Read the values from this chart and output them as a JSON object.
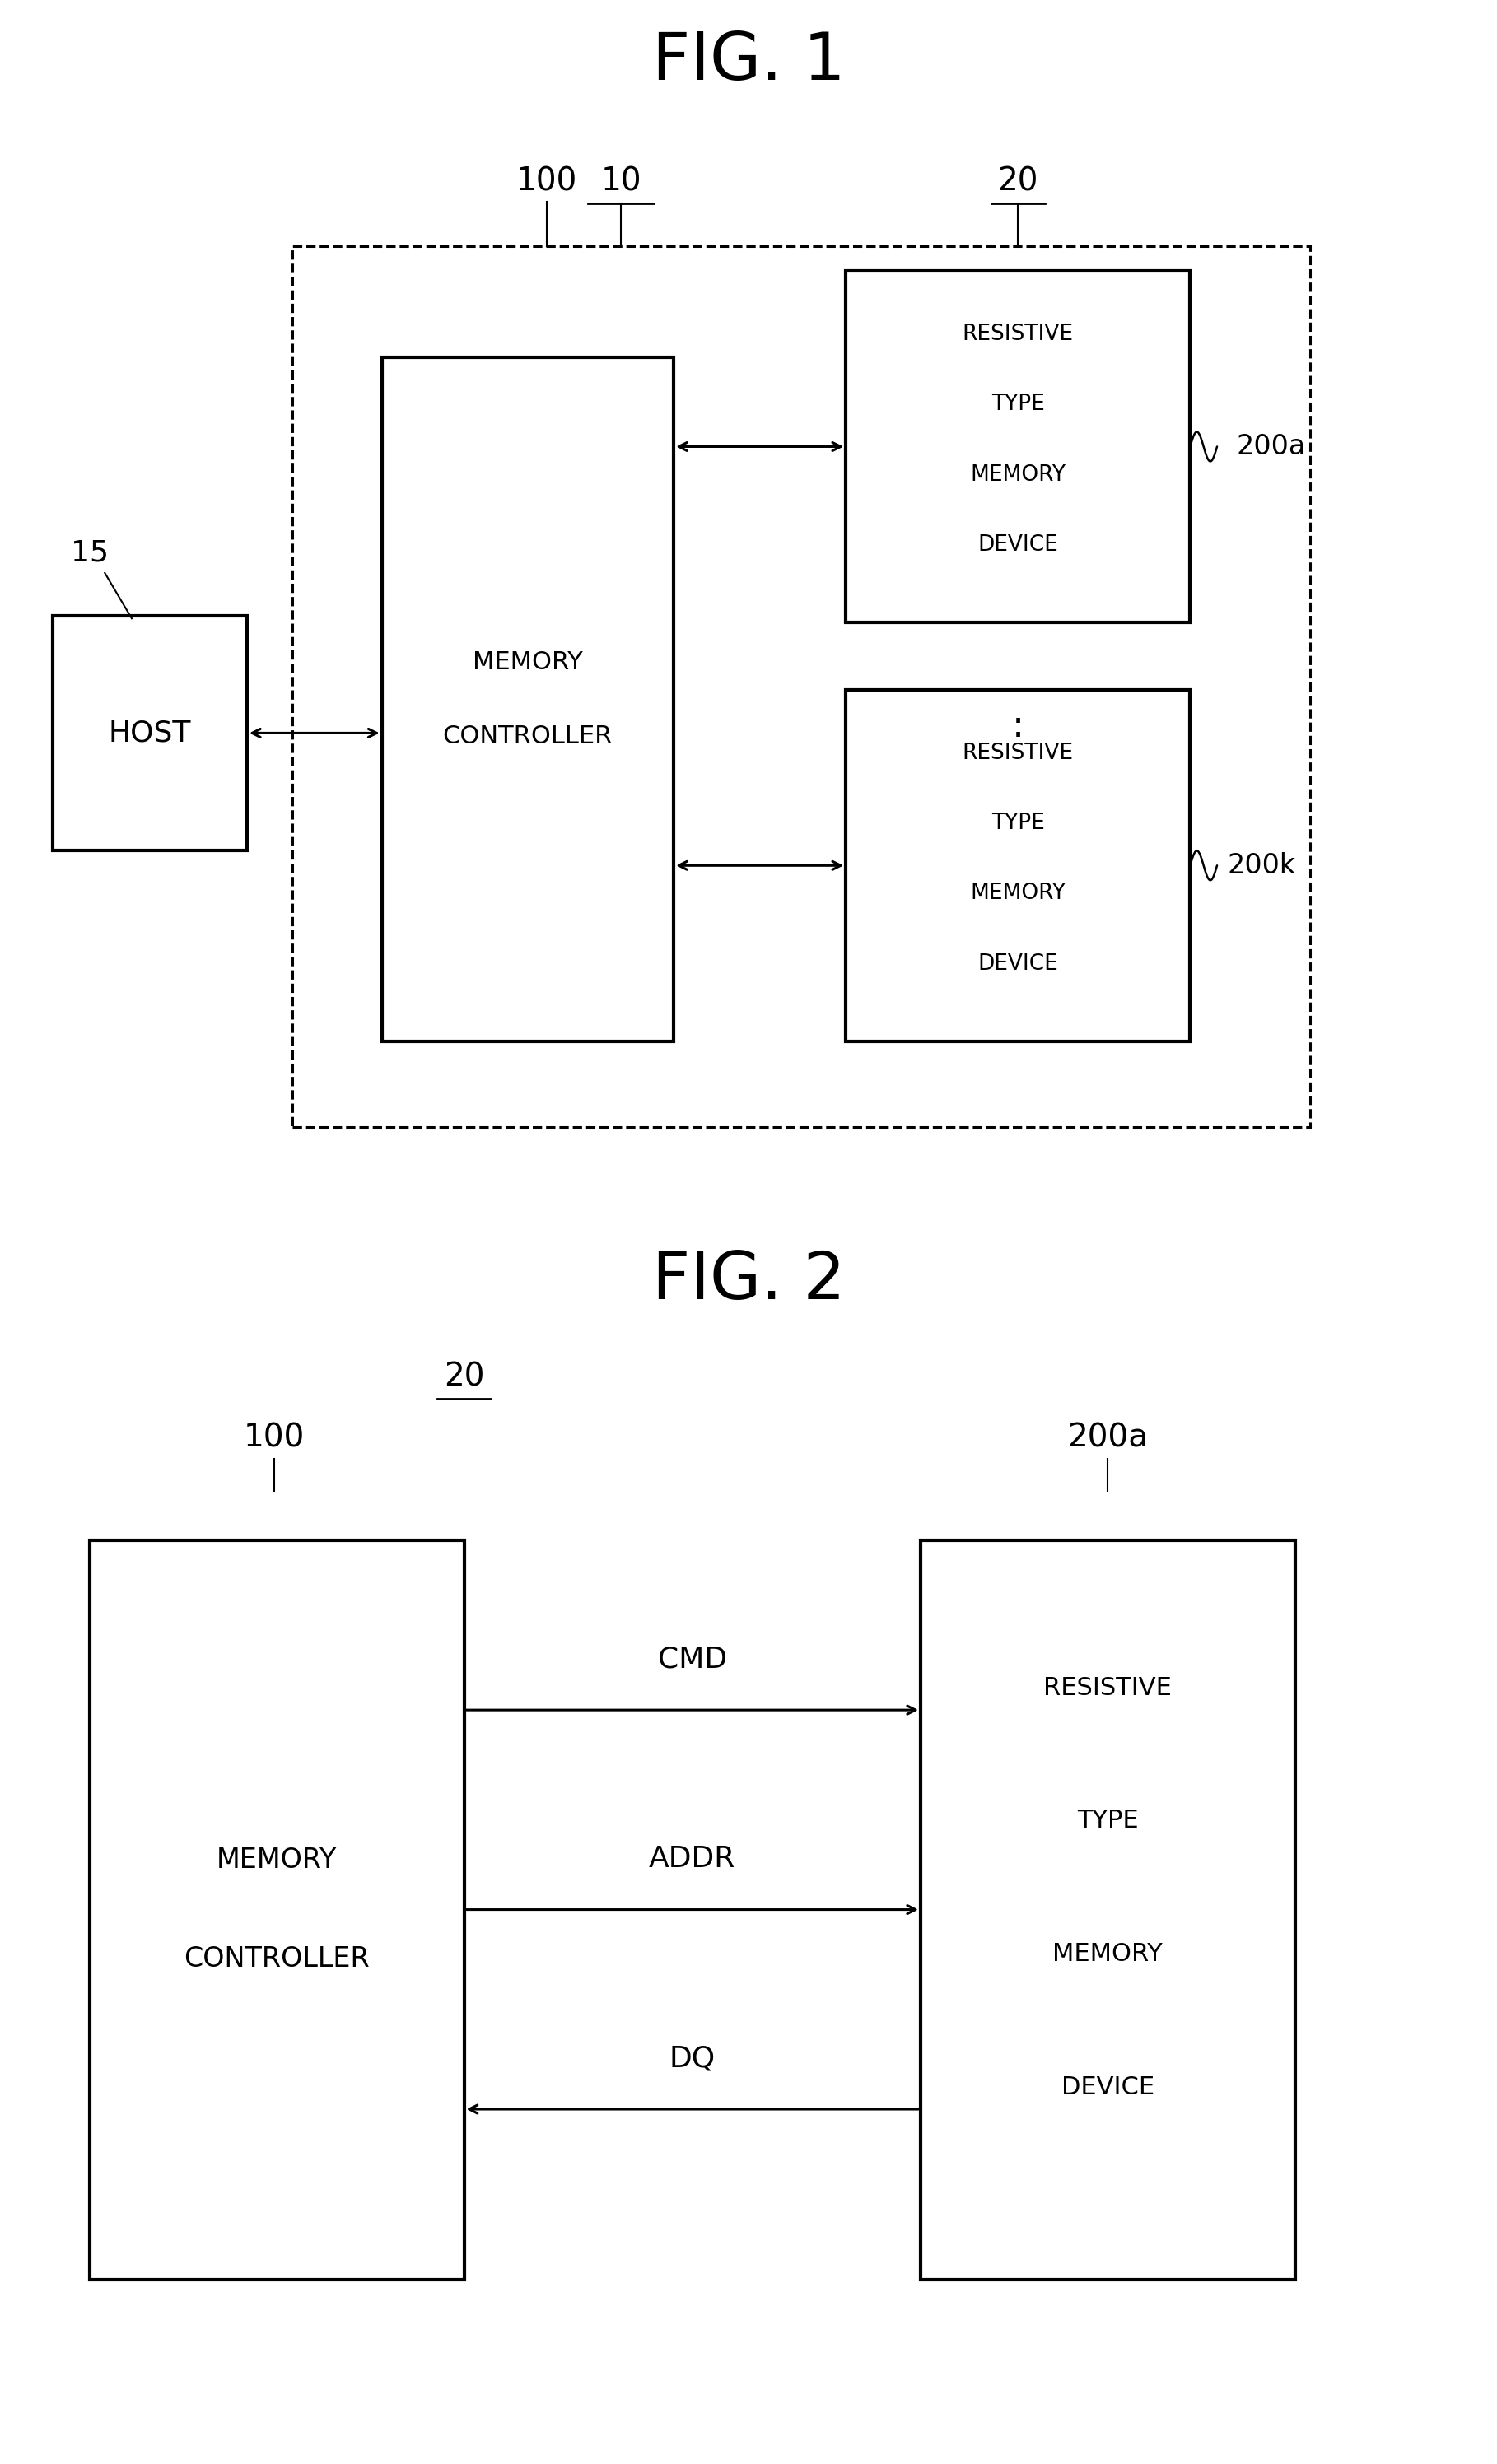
{
  "fig1_title": "FIG. 1",
  "fig2_title": "FIG. 2",
  "bg_color": "#ffffff",
  "line_color": "#000000",
  "fig1": {
    "label_10": "10",
    "label_100": "100",
    "label_20": "20",
    "label_15": "15",
    "label_200a": "200a",
    "label_200k": "200k",
    "host_text": "HOST",
    "mc_text_line1": "MEMORY",
    "mc_text_line2": "CONTROLLER",
    "rtmd_text": [
      "RESISTIVE",
      "TYPE",
      "MEMORY",
      "DEVICE"
    ],
    "dots": ":"
  },
  "fig2": {
    "label_20": "20",
    "label_100": "100",
    "label_200a": "200a",
    "mc_text_line1": "MEMORY",
    "mc_text_line2": "CONTROLLER",
    "rtmd_text": [
      "RESISTIVE",
      "TYPE",
      "MEMORY",
      "DEVICE"
    ],
    "cmd_label": "CMD",
    "addr_label": "ADDR",
    "dq_label": "DQ"
  }
}
